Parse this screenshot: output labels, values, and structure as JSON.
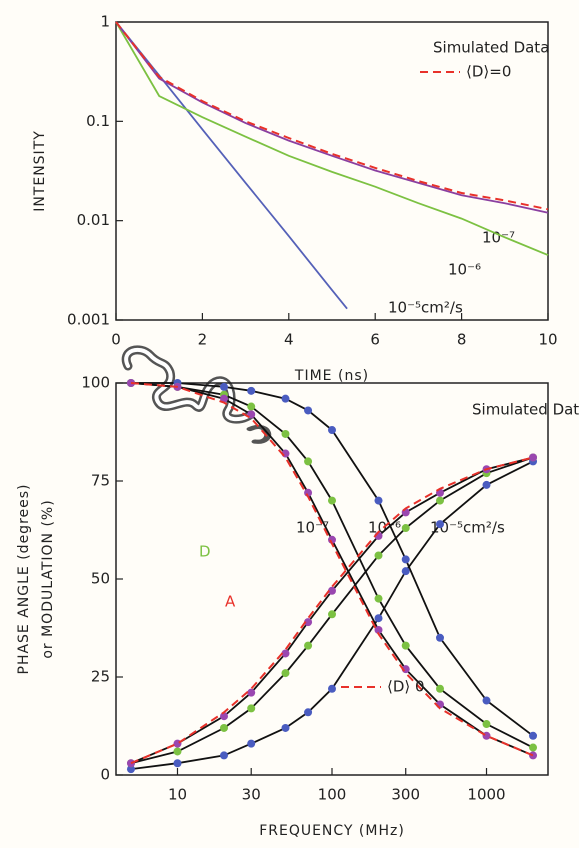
{
  "chart_data": [
    {
      "type": "line",
      "x_label": "TIME (ns)",
      "y_label": "INTENSITY",
      "y_scale": "log",
      "x_scale": "linear",
      "xlim": [
        0,
        10
      ],
      "ylim": [
        0.001,
        1
      ],
      "xticks": [
        0,
        2,
        4,
        6,
        8,
        10
      ],
      "yticks": [
        0.001,
        0.01,
        0.1,
        1
      ],
      "annotations": [
        "Simulated Data",
        "10⁻⁷",
        "10⁻⁶",
        "10⁻⁵cm²/s"
      ],
      "legend": "upper right",
      "series": [
        {
          "name": "⟨D⟩=0",
          "color": "#e8312a",
          "dash": true,
          "x": [
            0,
            1,
            2,
            3,
            4,
            5,
            6,
            7,
            8,
            9,
            10
          ],
          "values": [
            1,
            0.28,
            0.16,
            0.1,
            0.068,
            0.047,
            0.034,
            0.025,
            0.019,
            0.016,
            0.013
          ]
        },
        {
          "color": "#8a3fa0",
          "x": [
            0,
            1,
            2,
            3,
            4,
            5,
            6,
            7,
            8,
            9,
            10
          ],
          "values": [
            1,
            0.27,
            0.155,
            0.096,
            0.064,
            0.045,
            0.032,
            0.024,
            0.018,
            0.015,
            0.012
          ]
        },
        {
          "color": "#7cc142",
          "x": [
            0,
            1,
            2,
            3,
            4,
            5,
            6,
            7,
            8,
            9,
            10
          ],
          "values": [
            1,
            0.18,
            0.11,
            0.07,
            0.045,
            0.031,
            0.022,
            0.015,
            0.0105,
            0.0068,
            0.0045
          ]
        },
        {
          "color": "#5561b8",
          "x": [
            0,
            1,
            2,
            3,
            4,
            5,
            5.35
          ],
          "values": [
            1,
            0.29,
            0.083,
            0.024,
            0.007,
            0.002,
            0.0013
          ]
        }
      ]
    },
    {
      "type": "line",
      "x_label": "FREQUENCY (MHz)",
      "y_label": [
        "PHASE ANGLE (degrees)",
        "or MODULATION (%)"
      ],
      "x_scale": "log",
      "y_scale": "linear",
      "xlim": [
        4,
        2500
      ],
      "ylim": [
        0,
        100
      ],
      "xticks": [
        10,
        30,
        100,
        300,
        1000
      ],
      "yticks": [
        0,
        25,
        50,
        75,
        100
      ],
      "annotations": [
        "Simulated Data",
        "10⁻⁷",
        "10⁻⁶",
        "10⁻⁵cm²/s",
        "D",
        "A"
      ],
      "legend": "lower center",
      "x": [
        5,
        10,
        20,
        30,
        50,
        70,
        100,
        200,
        300,
        500,
        1000,
        2000
      ],
      "series": [
        {
          "name": "⟨D⟩ 0",
          "color": "#e8312a",
          "dash": true,
          "markers": false,
          "values": [
            3,
            8,
            16,
            22,
            32,
            40,
            48,
            62,
            68,
            73,
            78,
            81
          ]
        },
        {
          "color": "#e8312a",
          "dash": true,
          "markers": false,
          "values": [
            100,
            99,
            95,
            91,
            81,
            71,
            59,
            36,
            26,
            17,
            10,
            5
          ]
        },
        {
          "color": "#9a47b0",
          "line_color": "#111111",
          "markers": true,
          "values": [
            3,
            8,
            15,
            21,
            31,
            39,
            47,
            61,
            67,
            72,
            78,
            81
          ]
        },
        {
          "color": "#9a47b0",
          "line_color": "#111111",
          "markers": true,
          "values": [
            100,
            99,
            96,
            92,
            82,
            72,
            60,
            37,
            27,
            18,
            10,
            5
          ]
        },
        {
          "color": "#7cc142",
          "line_color": "#111111",
          "markers": true,
          "values": [
            3,
            6,
            12,
            17,
            26,
            33,
            41,
            56,
            63,
            70,
            77,
            81
          ]
        },
        {
          "color": "#7cc142",
          "line_color": "#111111",
          "markers": true,
          "values": [
            100,
            99,
            97,
            94,
            87,
            80,
            70,
            45,
            33,
            22,
            13,
            7
          ]
        },
        {
          "color": "#4a5cc0",
          "line_color": "#111111",
          "markers": true,
          "values": [
            1.5,
            3,
            5,
            8,
            12,
            16,
            22,
            40,
            52,
            64,
            74,
            80
          ]
        },
        {
          "color": "#4a5cc0",
          "line_color": "#111111",
          "markers": true,
          "values": [
            100,
            100,
            99,
            98,
            96,
            93,
            88,
            70,
            55,
            35,
            19,
            10
          ]
        }
      ]
    }
  ]
}
